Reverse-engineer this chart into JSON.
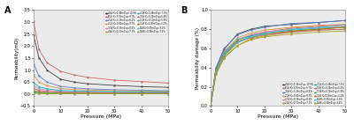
{
  "pressure": [
    0,
    2,
    5,
    10,
    15,
    20,
    30,
    40,
    50
  ],
  "series": [
    {
      "label": "38# K=2.46mD,φ=10.9%",
      "color": "#404040",
      "marker": "s",
      "perm": [
        2.46,
        1.5,
        1.0,
        0.62,
        0.5,
        0.43,
        0.36,
        0.31,
        0.28
      ],
      "damage": [
        0.0,
        0.39,
        0.59,
        0.75,
        0.8,
        0.83,
        0.85,
        0.87,
        0.89
      ]
    },
    {
      "label": "60# K=3.02mD,φ=9.7%",
      "color": "#d06060",
      "marker": "s",
      "perm": [
        3.02,
        1.85,
        1.3,
        0.95,
        0.8,
        0.7,
        0.58,
        0.52,
        0.46
      ],
      "damage": [
        0.0,
        0.39,
        0.57,
        0.69,
        0.74,
        0.77,
        0.81,
        0.83,
        0.85
      ]
    },
    {
      "label": "30# K=1.25mD,φ=8.2%",
      "color": "#5080d0",
      "marker": "s",
      "perm": [
        1.25,
        0.75,
        0.5,
        0.32,
        0.26,
        0.22,
        0.18,
        0.16,
        0.14
      ],
      "damage": [
        0.0,
        0.4,
        0.6,
        0.74,
        0.79,
        0.82,
        0.86,
        0.87,
        0.89
      ]
    },
    {
      "label": "22# K=0.80mD,φ=9.7%",
      "color": "#e09040",
      "marker": "s",
      "perm": [
        0.8,
        0.5,
        0.35,
        0.23,
        0.19,
        0.17,
        0.14,
        0.13,
        0.12
      ],
      "damage": [
        0.0,
        0.38,
        0.56,
        0.71,
        0.76,
        0.79,
        0.82,
        0.84,
        0.85
      ]
    },
    {
      "label": "37# K=0.35mD,φ=8.6%",
      "color": "#e080b0",
      "marker": "s",
      "perm": [
        0.35,
        0.22,
        0.16,
        0.11,
        0.09,
        0.08,
        0.07,
        0.065,
        0.06
      ],
      "damage": [
        0.0,
        0.37,
        0.54,
        0.69,
        0.74,
        0.77,
        0.8,
        0.82,
        0.83
      ]
    },
    {
      "label": "39# K=0.15mD,φ=7.1%",
      "color": "#c09000",
      "marker": "s",
      "perm": [
        0.15,
        0.1,
        0.075,
        0.055,
        0.045,
        0.04,
        0.035,
        0.032,
        0.03
      ],
      "damage": [
        0.0,
        0.33,
        0.5,
        0.63,
        0.7,
        0.73,
        0.77,
        0.79,
        0.8
      ]
    },
    {
      "label": "21# K=0.48mD,φ=7.3%",
      "color": "#00b8b8",
      "marker": "s",
      "perm": [
        0.48,
        0.3,
        0.22,
        0.15,
        0.13,
        0.115,
        0.1,
        0.09,
        0.085
      ],
      "damage": [
        0.0,
        0.38,
        0.55,
        0.69,
        0.73,
        0.76,
        0.79,
        0.81,
        0.82
      ]
    },
    {
      "label": "18# K=0.24mD,φ=6.4%",
      "color": "#c06080",
      "marker": "s",
      "perm": [
        0.24,
        0.15,
        0.11,
        0.08,
        0.07,
        0.062,
        0.055,
        0.05,
        0.047
      ],
      "damage": [
        0.0,
        0.38,
        0.54,
        0.67,
        0.71,
        0.74,
        0.77,
        0.79,
        0.8
      ]
    },
    {
      "label": "15# K=0.10mD,φ=5.8%",
      "color": "#50a050",
      "marker": "s",
      "perm": [
        0.1,
        0.065,
        0.048,
        0.034,
        0.028,
        0.025,
        0.022,
        0.02,
        0.018
      ],
      "damage": [
        0.0,
        0.35,
        0.52,
        0.66,
        0.72,
        0.75,
        0.78,
        0.8,
        0.82
      ]
    },
    {
      "label": "16# K=0.06mD,φ=3.2%",
      "color": "#d06800",
      "marker": "s",
      "perm": [
        0.06,
        0.038,
        0.028,
        0.02,
        0.017,
        0.015,
        0.013,
        0.012,
        0.011
      ],
      "damage": [
        0.0,
        0.37,
        0.53,
        0.67,
        0.72,
        0.75,
        0.78,
        0.8,
        0.82
      ]
    },
    {
      "label": "52#K=0.05mD,φ=3.0%",
      "color": "#40c0d8",
      "marker": "s",
      "perm": [
        0.05,
        0.032,
        0.023,
        0.017,
        0.014,
        0.012,
        0.01,
        0.009,
        0.008
      ],
      "damage": [
        0.0,
        0.36,
        0.54,
        0.66,
        0.72,
        0.75,
        0.8,
        0.82,
        0.84
      ]
    },
    {
      "label": "16#K=0.04mD,φ=3.2%",
      "color": "#a0a020",
      "marker": "s",
      "perm": [
        0.04,
        0.025,
        0.018,
        0.013,
        0.011,
        0.01,
        0.009,
        0.008,
        0.007
      ],
      "damage": [
        0.0,
        0.33,
        0.5,
        0.63,
        0.69,
        0.72,
        0.75,
        0.77,
        0.78
      ]
    }
  ],
  "xlim": [
    0,
    50
  ],
  "ylim_a": [
    -0.5,
    3.5
  ],
  "ylim_b": [
    0.0,
    1.0
  ],
  "xlabel": "Pressure (MPa)",
  "ylabel_a": "Permeability(mD)",
  "ylabel_b": "Permeability damage (%)",
  "xticks": [
    0,
    10,
    20,
    30,
    40,
    50
  ],
  "yticks_a": [
    -0.5,
    0.0,
    0.5,
    1.0,
    1.5,
    2.0,
    2.5,
    3.0,
    3.5
  ],
  "yticks_b": [
    0.0,
    0.2,
    0.4,
    0.6,
    0.8,
    1.0
  ],
  "bg_color": "#ebebeb"
}
